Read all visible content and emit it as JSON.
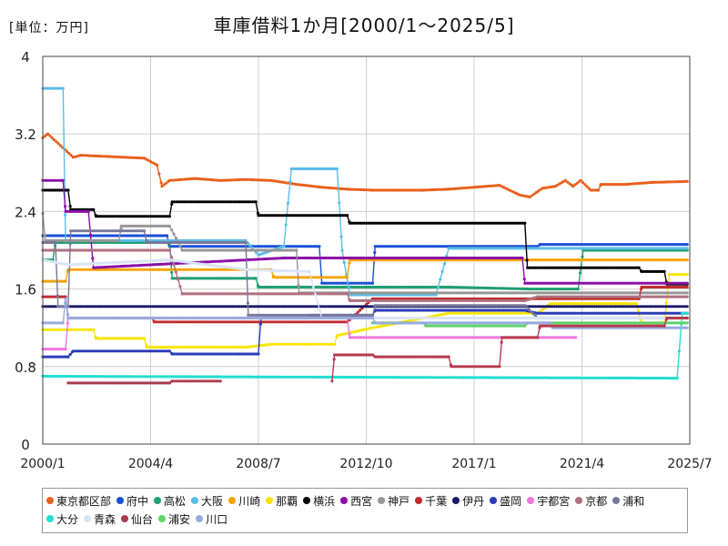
{
  "chart_data": {
    "type": "line",
    "title": "車庫借料1か月[2000/1〜2025/5]",
    "unit_label": "[単位：万円]",
    "x_ticks": [
      "2000/1",
      "2004/4",
      "2008/7",
      "2012/10",
      "2017/1",
      "2021/4",
      "2025/7"
    ],
    "x_tick_values": [
      2000.0,
      2004.25,
      2008.5,
      2012.75,
      2017.0,
      2021.25,
      2025.5
    ],
    "xlim": [
      2000.0,
      2025.5
    ],
    "y_ticks": [
      "0",
      "0.8",
      "1.6",
      "2.4",
      "3.2",
      "4"
    ],
    "y_tick_values": [
      0,
      0.8,
      1.6,
      2.4,
      3.2,
      4.0
    ],
    "ylim": [
      0,
      4
    ],
    "grid": true,
    "legend_position": "bottom",
    "series": [
      {
        "name": "東京都区部",
        "color": "#e8601c",
        "points": [
          [
            2000.0,
            3.16
          ],
          [
            2000.2,
            3.2
          ],
          [
            2001.2,
            2.96
          ],
          [
            2001.5,
            2.98
          ],
          [
            2004.0,
            2.95
          ],
          [
            2004.5,
            2.88
          ],
          [
            2004.7,
            2.66
          ],
          [
            2005.0,
            2.72
          ],
          [
            2006.0,
            2.74
          ],
          [
            2007.0,
            2.72
          ],
          [
            2008.0,
            2.73
          ],
          [
            2009.0,
            2.72
          ],
          [
            2010.0,
            2.68
          ],
          [
            2011.0,
            2.65
          ],
          [
            2012.0,
            2.63
          ],
          [
            2013.0,
            2.62
          ],
          [
            2014.0,
            2.62
          ],
          [
            2015.0,
            2.62
          ],
          [
            2016.0,
            2.63
          ],
          [
            2017.0,
            2.65
          ],
          [
            2018.0,
            2.67
          ],
          [
            2018.8,
            2.57
          ],
          [
            2019.2,
            2.55
          ],
          [
            2019.7,
            2.64
          ],
          [
            2020.2,
            2.66
          ],
          [
            2020.6,
            2.72
          ],
          [
            2020.9,
            2.66
          ],
          [
            2021.2,
            2.72
          ],
          [
            2021.6,
            2.62
          ],
          [
            2021.9,
            2.62
          ],
          [
            2022.0,
            2.68
          ],
          [
            2023.0,
            2.68
          ],
          [
            2024.0,
            2.7
          ],
          [
            2025.4,
            2.71
          ]
        ]
      },
      {
        "name": "府中",
        "color": "#1a4fd6",
        "points": [
          [
            2000.0,
            2.15
          ],
          [
            2004.9,
            2.15
          ],
          [
            2005.0,
            2.04
          ],
          [
            2010.9,
            2.04
          ],
          [
            2011.0,
            1.66
          ],
          [
            2013.0,
            1.66
          ],
          [
            2013.1,
            2.04
          ],
          [
            2019.5,
            2.04
          ],
          [
            2019.6,
            2.06
          ],
          [
            2025.4,
            2.06
          ]
        ]
      },
      {
        "name": "高松",
        "color": "#1e9e6e",
        "points": [
          [
            2000.0,
            1.9
          ],
          [
            2000.4,
            1.9
          ],
          [
            2000.5,
            2.08
          ],
          [
            2005.0,
            2.08
          ],
          [
            2005.1,
            1.71
          ],
          [
            2008.4,
            1.71
          ],
          [
            2008.5,
            1.62
          ],
          [
            2016.0,
            1.62
          ],
          [
            2019.2,
            1.6
          ],
          [
            2021.1,
            1.6
          ],
          [
            2021.3,
            2.0
          ],
          [
            2025.4,
            2.0
          ]
        ]
      },
      {
        "name": "大阪",
        "color": "#5bbde8",
        "points": [
          [
            2000.0,
            3.67
          ],
          [
            2000.8,
            3.67
          ],
          [
            2000.9,
            2.1
          ],
          [
            2008.0,
            2.1
          ],
          [
            2008.5,
            1.95
          ],
          [
            2009.5,
            2.04
          ],
          [
            2009.8,
            2.84
          ],
          [
            2011.6,
            2.84
          ],
          [
            2011.8,
            2.0
          ],
          [
            2012.1,
            1.54
          ],
          [
            2015.5,
            1.54
          ],
          [
            2016.0,
            2.02
          ],
          [
            2025.4,
            2.02
          ]
        ]
      },
      {
        "name": "川崎",
        "color": "#f5a300",
        "points": [
          [
            2000.0,
            1.68
          ],
          [
            2000.9,
            1.68
          ],
          [
            2001.0,
            1.8
          ],
          [
            2009.0,
            1.8
          ],
          [
            2009.1,
            1.72
          ],
          [
            2012.0,
            1.72
          ],
          [
            2012.1,
            1.9
          ],
          [
            2025.4,
            1.9
          ]
        ]
      },
      {
        "name": "那覇",
        "color": "#f7e500",
        "points": [
          [
            2000.0,
            1.18
          ],
          [
            2002.0,
            1.18
          ],
          [
            2002.1,
            1.09
          ],
          [
            2004.0,
            1.09
          ],
          [
            2004.1,
            1.0
          ],
          [
            2008.0,
            1.0
          ],
          [
            2009.0,
            1.03
          ],
          [
            2011.5,
            1.03
          ],
          [
            2011.6,
            1.12
          ],
          [
            2013.0,
            1.2
          ],
          [
            2016.0,
            1.35
          ],
          [
            2019.5,
            1.35
          ],
          [
            2020.0,
            1.45
          ],
          [
            2023.4,
            1.45
          ],
          [
            2023.6,
            1.25
          ],
          [
            2024.5,
            1.25
          ],
          [
            2024.7,
            1.75
          ],
          [
            2025.4,
            1.75
          ]
        ]
      },
      {
        "name": "横浜",
        "color": "#000000",
        "points": [
          [
            2000.0,
            2.62
          ],
          [
            2001.0,
            2.62
          ],
          [
            2001.1,
            2.42
          ],
          [
            2002.0,
            2.42
          ],
          [
            2002.1,
            2.35
          ],
          [
            2005.0,
            2.35
          ],
          [
            2005.1,
            2.5
          ],
          [
            2008.4,
            2.5
          ],
          [
            2008.5,
            2.36
          ],
          [
            2012.0,
            2.36
          ],
          [
            2012.1,
            2.28
          ],
          [
            2019.0,
            2.28
          ],
          [
            2019.1,
            1.82
          ],
          [
            2023.5,
            1.82
          ],
          [
            2023.6,
            1.78
          ],
          [
            2024.5,
            1.78
          ],
          [
            2024.6,
            1.65
          ],
          [
            2025.4,
            1.65
          ]
        ]
      },
      {
        "name": "西宮",
        "color": "#8b0fa6",
        "points": [
          [
            2000.0,
            2.72
          ],
          [
            2000.8,
            2.72
          ],
          [
            2000.9,
            2.4
          ],
          [
            2001.8,
            2.4
          ],
          [
            2002.0,
            1.82
          ],
          [
            2009.5,
            1.92
          ],
          [
            2018.9,
            1.92
          ],
          [
            2019.0,
            1.66
          ],
          [
            2025.4,
            1.66
          ]
        ]
      },
      {
        "name": "神戸",
        "color": "#969696",
        "points": [
          [
            2000.0,
            2.38
          ],
          [
            2000.1,
            2.1
          ],
          [
            2003.0,
            2.1
          ],
          [
            2003.1,
            2.25
          ],
          [
            2005.0,
            2.25
          ],
          [
            2005.5,
            2.0
          ],
          [
            2010.0,
            2.0
          ],
          [
            2010.1,
            1.56
          ],
          [
            2013.0,
            1.56
          ],
          [
            2025.4,
            1.56
          ]
        ]
      },
      {
        "name": "千葉",
        "color": "#c02b2b",
        "points": [
          [
            2000.0,
            1.52
          ],
          [
            2000.9,
            1.52
          ],
          [
            2001.0,
            1.3
          ],
          [
            2004.3,
            1.3
          ],
          [
            2004.4,
            1.26
          ],
          [
            2012.0,
            1.26
          ],
          [
            2013.0,
            1.5
          ],
          [
            2023.5,
            1.5
          ],
          [
            2023.6,
            1.62
          ],
          [
            2025.4,
            1.62
          ]
        ]
      },
      {
        "name": "伊丹",
        "color": "#1a1a66",
        "points": [
          [
            2000.0,
            1.42
          ],
          [
            2025.4,
            1.42
          ]
        ]
      },
      {
        "name": "盛岡",
        "color": "#2a3cb8",
        "points": [
          [
            2000.0,
            0.9
          ],
          [
            2001.0,
            0.9
          ],
          [
            2001.2,
            0.96
          ],
          [
            2005.0,
            0.96
          ],
          [
            2005.1,
            0.93
          ],
          [
            2008.5,
            0.93
          ],
          [
            2008.6,
            1.3
          ],
          [
            2010.5,
            1.3
          ],
          [
            2010.6,
            1.33
          ],
          [
            2013.0,
            1.33
          ],
          [
            2013.1,
            1.38
          ],
          [
            2019.0,
            1.38
          ],
          [
            2019.5,
            1.35
          ],
          [
            2025.4,
            1.35
          ]
        ]
      },
      {
        "name": "宇都宮",
        "color": "#ee77dd",
        "points": [
          [
            2000.0,
            0.98
          ],
          [
            2000.9,
            0.98
          ],
          [
            2001.0,
            1.3
          ],
          [
            2012.0,
            1.3
          ],
          [
            2012.1,
            1.1
          ],
          [
            2019.5,
            1.1
          ],
          [
            2021.0,
            1.1
          ]
        ]
      },
      {
        "name": "京都",
        "color": "#b07080",
        "points": [
          [
            2000.0,
            2.0
          ],
          [
            2005.0,
            2.0
          ],
          [
            2005.5,
            1.55
          ],
          [
            2012.0,
            1.55
          ],
          [
            2012.1,
            1.48
          ],
          [
            2019.0,
            1.48
          ],
          [
            2019.5,
            1.52
          ],
          [
            2025.4,
            1.52
          ]
        ]
      },
      {
        "name": "浦和",
        "color": "#777799",
        "points": [
          [
            2000.0,
            2.08
          ],
          [
            2000.5,
            2.08
          ],
          [
            2000.6,
            1.42
          ],
          [
            2001.0,
            1.42
          ],
          [
            2001.1,
            2.2
          ],
          [
            2004.0,
            2.2
          ],
          [
            2004.1,
            2.08
          ],
          [
            2008.0,
            2.08
          ],
          [
            2008.1,
            1.33
          ],
          [
            2013.0,
            1.33
          ],
          [
            2013.1,
            1.43
          ],
          [
            2019.0,
            1.43
          ],
          [
            2019.5,
            1.3
          ],
          [
            2025.4,
            1.3
          ]
        ]
      },
      {
        "name": "大分",
        "color": "#21ddd0",
        "points": [
          [
            2000.0,
            0.7
          ],
          [
            2025.0,
            0.68
          ],
          [
            2025.2,
            1.35
          ],
          [
            2025.4,
            1.35
          ]
        ]
      },
      {
        "name": "青森",
        "color": "#d8e4f6",
        "points": [
          [
            2000.0,
            1.9
          ],
          [
            2001.0,
            1.85
          ],
          [
            2005.0,
            1.9
          ],
          [
            2008.0,
            1.8
          ],
          [
            2010.5,
            1.78
          ],
          [
            2011.0,
            1.3
          ],
          [
            2025.4,
            1.3
          ]
        ]
      },
      {
        "name": "仙台",
        "color": "#a83c50",
        "points": [
          [
            2001.0,
            0.63
          ],
          [
            2005.0,
            0.63
          ],
          [
            2005.1,
            0.65
          ],
          [
            2007.0,
            0.65
          ]
        ]
      },
      {
        "name": "浦安",
        "color": "#5ed36a",
        "points": [
          [
            2013.0,
            1.25
          ],
          [
            2015.0,
            1.25
          ],
          [
            2015.1,
            1.22
          ],
          [
            2019.0,
            1.22
          ],
          [
            2019.1,
            1.25
          ],
          [
            2025.4,
            1.25
          ]
        ]
      },
      {
        "name": "川口",
        "color": "#99aadd",
        "points": [
          [
            2000.0,
            1.25
          ],
          [
            2000.8,
            1.25
          ],
          [
            2000.9,
            1.5
          ],
          [
            2001.0,
            1.3
          ],
          [
            2010.0,
            1.3
          ],
          [
            2013.0,
            1.3
          ],
          [
            2013.1,
            1.25
          ],
          [
            2020.0,
            1.25
          ],
          [
            2020.1,
            1.2
          ],
          [
            2025.4,
            1.2
          ]
        ]
      },
      {
        "name": "仙台2",
        "legend": false,
        "color": "#b53a4e",
        "points": [
          [
            2011.4,
            0.65
          ],
          [
            2011.5,
            0.92
          ],
          [
            2013.0,
            0.92
          ],
          [
            2013.1,
            0.9
          ],
          [
            2016.0,
            0.9
          ],
          [
            2016.1,
            0.8
          ],
          [
            2018.0,
            0.8
          ],
          [
            2018.1,
            1.1
          ],
          [
            2019.5,
            1.1
          ],
          [
            2019.6,
            1.22
          ],
          [
            2024.5,
            1.22
          ],
          [
            2024.6,
            1.3
          ],
          [
            2025.4,
            1.3
          ]
        ]
      }
    ]
  }
}
